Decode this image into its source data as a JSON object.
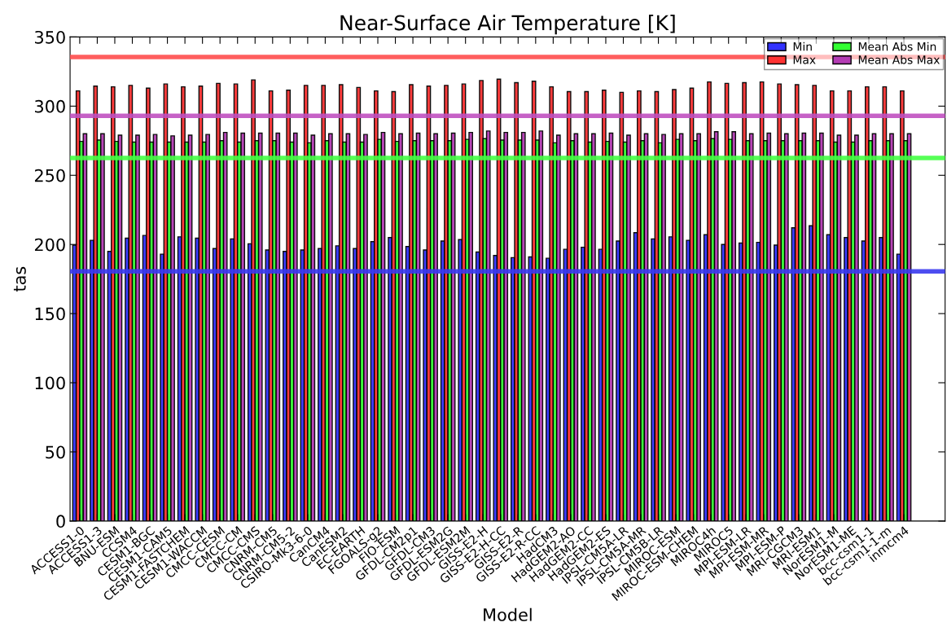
{
  "chart_data": {
    "type": "bar",
    "title": "Near-Surface Air Temperature [K]",
    "xlabel": "Model",
    "ylabel": "tas",
    "categories": [
      "ACCESS1-0",
      "ACCESS1-3",
      "BNU-ESM",
      "CCSM4",
      "CESM1-BGC",
      "CESM1-CAM5",
      "CESM1-FASTCHEM",
      "CESM1-WACCM",
      "CMCC-CESM",
      "CMCC-CM",
      "CMCC-CMS",
      "CNRM-CM5",
      "CNRM-CM5-2",
      "CSIRO-Mk3-6-0",
      "CanCM4",
      "CanESM2",
      "EC-EARTH",
      "FGOALS-g2",
      "FIO-ESM",
      "GFDL-CM2p1",
      "GFDL-CM3",
      "GFDL-ESM2G",
      "GFDL-ESM2M",
      "GISS-E2-H",
      "GISS-E2-H-CC",
      "GISS-E2-R",
      "GISS-E2-R-CC",
      "HadCM3",
      "HadGEM2-AO",
      "HadGEM2-CC",
      "HadGEM2-ES",
      "IPSL-CM5A-LR",
      "IPSL-CM5A-MR",
      "IPSL-CM5B-LR",
      "MIROC-ESM",
      "MIROC-ESM-CHEM",
      "MIROC4h",
      "MIROC5",
      "MPI-ESM-LR",
      "MPI-ESM-MR",
      "MPI-ESM-P",
      "MRI-CGCM3",
      "MRI-ESM1",
      "NorESM1-M",
      "NorESM1-ME",
      "bcc-csm1-1",
      "bcc-csm1-1-m",
      "inmcm4"
    ],
    "series": [
      {
        "name": "Min",
        "color": "#3232ff",
        "values": [
          199.5,
          203,
          195,
          204.5,
          206.5,
          193,
          205.5,
          204.5,
          197,
          204,
          200.5,
          196,
          195,
          196,
          197,
          199,
          197,
          202,
          205,
          198.5,
          196,
          202.5,
          203.5,
          194.5,
          192,
          190.5,
          191,
          190,
          196.5,
          198,
          196.5,
          202.5,
          208.5,
          204,
          205.5,
          203,
          207,
          200,
          201,
          201.5,
          199.5,
          212,
          213.5,
          207,
          205,
          202.5,
          205,
          193
        ]
      },
      {
        "name": "Max",
        "color": "#ff3232",
        "values": [
          311,
          314.5,
          314,
          315,
          313,
          316,
          314,
          314.5,
          316.5,
          316,
          319,
          311,
          311.5,
          315,
          315,
          315.5,
          313.5,
          311,
          310.5,
          315.5,
          314.5,
          315,
          316,
          318.5,
          319.5,
          317,
          318,
          314,
          310.5,
          310.5,
          311.5,
          310,
          311,
          310.5,
          312,
          313,
          317.5,
          316.5,
          317,
          317.5,
          316,
          315.5,
          315,
          311,
          311,
          314,
          314,
          311
        ]
      },
      {
        "name": "Mean Abs Min",
        "color": "#32ff32",
        "values": [
          274.5,
          275.5,
          274.5,
          274,
          274,
          274,
          274,
          274,
          275,
          274,
          275,
          275,
          274,
          273.5,
          275,
          274,
          274,
          276,
          274.5,
          275,
          275,
          275,
          276,
          276.5,
          275.5,
          275.5,
          275.5,
          273.5,
          275,
          274,
          274.5,
          274,
          275,
          273.5,
          276,
          275,
          276.5,
          276,
          275,
          275,
          275,
          275,
          275,
          274,
          274,
          275,
          275,
          275
        ]
      },
      {
        "name": "Mean Abs Max",
        "color": "#b43cb4",
        "values": [
          280,
          280,
          279,
          279,
          279.5,
          278.5,
          279,
          279.5,
          281,
          280.5,
          280.5,
          280.5,
          280.5,
          279,
          280,
          280,
          279.5,
          281,
          280,
          280.5,
          280,
          280.5,
          281,
          282,
          281,
          281,
          282,
          279,
          280,
          280,
          280.5,
          279,
          280,
          279.5,
          280,
          280,
          281.5,
          281.5,
          280,
          280.5,
          280,
          280.5,
          280.5,
          279,
          279,
          280,
          280,
          280
        ]
      }
    ],
    "ylim": [
      0,
      350
    ],
    "yticks": [
      0,
      50,
      100,
      150,
      200,
      250,
      300,
      350
    ],
    "grid": false,
    "legend": "top right",
    "ref_lines": [
      {
        "axis": "y",
        "value": 335.5,
        "color": "#ff4d4d"
      },
      {
        "axis": "y",
        "value": 262.5,
        "color": "#44ff44"
      },
      {
        "axis": "y",
        "value": 293,
        "color": "#c050c0"
      },
      {
        "axis": "y",
        "value": 180.5,
        "color": "#3a3aee"
      }
    ]
  }
}
